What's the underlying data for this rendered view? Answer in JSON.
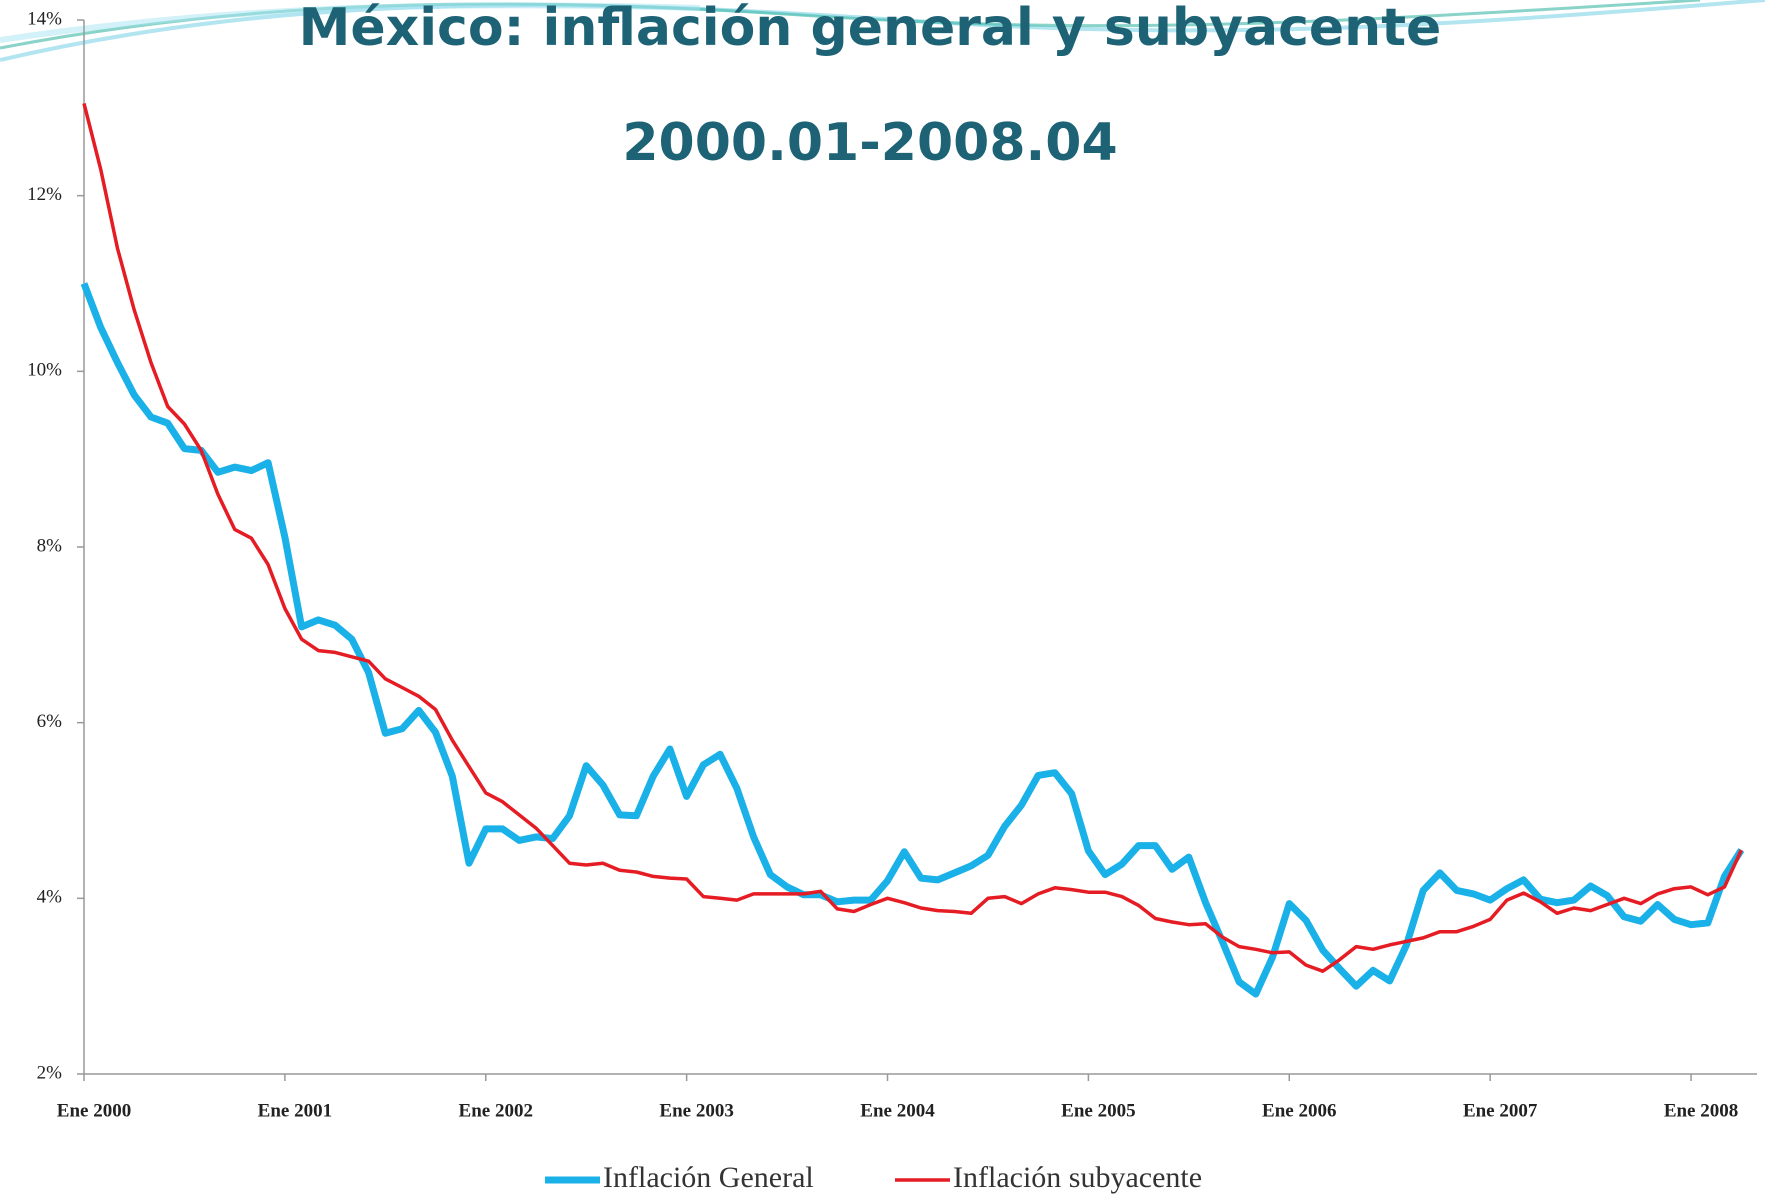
{
  "chart_data": {
    "type": "line",
    "title": "México: inflación general y subyacente",
    "subtitle": "2000.01-2008.04",
    "categories": [
      "Ene 2000",
      null,
      null,
      null,
      null,
      null,
      null,
      null,
      null,
      null,
      null,
      null,
      "Ene 2001",
      null,
      null,
      null,
      null,
      null,
      null,
      null,
      null,
      null,
      null,
      null,
      "Ene 2002",
      null,
      null,
      null,
      null,
      null,
      null,
      null,
      null,
      null,
      null,
      null,
      "Ene 2003",
      null,
      null,
      null,
      null,
      null,
      null,
      null,
      null,
      null,
      null,
      null,
      "Ene 2004",
      null,
      null,
      null,
      null,
      null,
      null,
      null,
      null,
      null,
      null,
      null,
      "Ene 2005",
      null,
      null,
      null,
      null,
      null,
      null,
      null,
      null,
      null,
      null,
      null,
      "Ene 2006",
      null,
      null,
      null,
      null,
      null,
      null,
      null,
      null,
      null,
      null,
      null,
      "Ene 2007",
      null,
      null,
      null,
      null,
      null,
      null,
      null,
      null,
      null,
      null,
      null,
      "Ene 2008",
      null,
      null,
      null
    ],
    "series": [
      {
        "name": "Inflación General",
        "color": "#1ab0e8",
        "values": [
          11.0,
          10.5,
          10.1,
          9.73,
          9.48,
          9.41,
          9.12,
          9.1,
          8.85,
          8.91,
          8.87,
          8.96,
          8.11,
          7.09,
          7.17,
          7.11,
          6.95,
          6.57,
          5.88,
          5.93,
          6.14,
          5.89,
          5.39,
          4.4,
          4.79,
          4.79,
          4.66,
          4.7,
          4.68,
          4.94,
          5.51,
          5.29,
          4.95,
          4.94,
          5.39,
          5.7,
          5.16,
          5.52,
          5.64,
          5.25,
          4.7,
          4.27,
          4.13,
          4.04,
          4.04,
          3.96,
          3.98,
          3.98,
          4.2,
          4.53,
          4.23,
          4.21,
          4.29,
          4.37,
          4.49,
          4.82,
          5.06,
          5.4,
          5.43,
          5.19,
          4.54,
          4.27,
          4.39,
          4.6,
          4.6,
          4.33,
          4.47,
          3.95,
          3.51,
          3.05,
          2.91,
          3.33,
          3.94,
          3.75,
          3.41,
          3.2,
          3.0,
          3.18,
          3.06,
          3.47,
          4.09,
          4.29,
          4.09,
          4.05,
          3.98,
          4.11,
          4.21,
          3.99,
          3.95,
          3.98,
          4.14,
          4.03,
          3.79,
          3.74,
          3.93,
          3.76,
          3.7,
          3.72,
          4.25,
          4.55
        ]
      },
      {
        "name": "Inflación subyacente",
        "color": "#e51c23",
        "values": [
          13.05,
          12.3,
          11.4,
          10.7,
          10.1,
          9.6,
          9.4,
          9.1,
          8.6,
          8.2,
          8.1,
          7.8,
          7.3,
          6.95,
          6.82,
          6.8,
          6.75,
          6.7,
          6.5,
          6.4,
          6.3,
          6.15,
          5.8,
          5.5,
          5.2,
          5.1,
          4.95,
          4.8,
          4.6,
          4.4,
          4.38,
          4.4,
          4.32,
          4.3,
          4.25,
          4.23,
          4.22,
          4.02,
          4.0,
          3.98,
          4.05,
          4.05,
          4.05,
          4.05,
          4.08,
          3.88,
          3.85,
          3.93,
          4.0,
          3.95,
          3.89,
          3.86,
          3.85,
          3.83,
          4.0,
          4.02,
          3.94,
          4.05,
          4.12,
          4.1,
          4.07,
          4.07,
          4.02,
          3.92,
          3.77,
          3.73,
          3.7,
          3.71,
          3.56,
          3.45,
          3.42,
          3.38,
          3.39,
          3.24,
          3.17,
          3.3,
          3.45,
          3.42,
          3.47,
          3.51,
          3.55,
          3.62,
          3.62,
          3.68,
          3.76,
          3.98,
          4.06,
          3.96,
          3.83,
          3.89,
          3.86,
          3.93,
          4.0,
          3.94,
          4.05,
          4.11,
          4.13,
          4.04,
          4.13,
          4.55
        ]
      }
    ],
    "ylim": [
      2,
      14
    ],
    "yticks": [
      {
        "value": 2,
        "label": "2%"
      },
      {
        "value": 4,
        "label": "4%"
      },
      {
        "value": 6,
        "label": "6%"
      },
      {
        "value": 8,
        "label": "8%"
      },
      {
        "value": 10,
        "label": "10%"
      },
      {
        "value": 12,
        "label": "12%"
      },
      {
        "value": 14,
        "label": "14%"
      }
    ],
    "legend": "bottom"
  }
}
